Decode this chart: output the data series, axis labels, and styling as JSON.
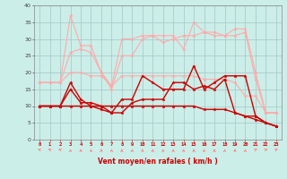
{
  "x": [
    0,
    1,
    2,
    3,
    4,
    5,
    6,
    7,
    8,
    9,
    10,
    11,
    12,
    13,
    14,
    15,
    16,
    17,
    18,
    19,
    20,
    21,
    22,
    23
  ],
  "series": [
    {
      "color": "#ffaaaa",
      "lw": 0.8,
      "values": [
        17,
        17,
        17,
        37,
        28,
        28,
        20,
        16,
        30,
        30,
        31,
        31,
        31,
        31,
        27,
        35,
        32,
        31,
        31,
        33,
        33,
        20,
        8,
        8
      ]
    },
    {
      "color": "#ffaaaa",
      "lw": 0.8,
      "values": [
        17,
        17,
        17,
        26,
        27,
        26,
        20,
        15,
        25,
        25,
        30,
        31,
        29,
        30,
        31,
        31,
        32,
        32,
        31,
        31,
        32,
        18,
        8,
        8
      ]
    },
    {
      "color": "#ffaaaa",
      "lw": 0.8,
      "values": [
        17,
        17,
        17,
        20,
        20,
        19,
        19,
        16,
        19,
        19,
        19,
        19,
        19,
        19,
        19,
        19,
        18,
        18,
        18,
        17,
        13,
        13,
        8,
        8
      ]
    },
    {
      "color": "#cc0000",
      "lw": 1.0,
      "values": [
        10,
        10,
        10,
        17,
        12,
        10,
        9,
        8,
        12,
        12,
        19,
        17,
        15,
        15,
        15,
        22,
        15,
        17,
        19,
        19,
        19,
        7,
        5,
        4
      ]
    },
    {
      "color": "#cc0000",
      "lw": 1.0,
      "values": [
        10,
        10,
        10,
        15,
        11,
        11,
        10,
        8,
        8,
        11,
        12,
        12,
        12,
        17,
        17,
        15,
        16,
        15,
        18,
        8,
        7,
        7,
        5,
        4
      ]
    },
    {
      "color": "#cc0000",
      "lw": 1.0,
      "values": [
        10,
        10,
        10,
        10,
        10,
        10,
        10,
        10,
        10,
        10,
        10,
        10,
        10,
        10,
        10,
        10,
        9,
        9,
        9,
        8,
        7,
        6,
        5,
        4
      ]
    }
  ],
  "arrow_angles": [
    315,
    315,
    315,
    0,
    0,
    0,
    0,
    0,
    0,
    0,
    0,
    0,
    0,
    0,
    0,
    0,
    0,
    0,
    0,
    0,
    0,
    45,
    45,
    45
  ],
  "xlim_min": -0.5,
  "xlim_max": 23.5,
  "ylim_min": 0,
  "ylim_max": 40,
  "yticks": [
    0,
    5,
    10,
    15,
    20,
    25,
    30,
    35,
    40
  ],
  "xtick_labels": [
    "0",
    "1",
    "2",
    "3",
    "4",
    "5",
    "6",
    "7",
    "8",
    "9",
    "10",
    "11",
    "12",
    "13",
    "14",
    "15",
    "16",
    "17",
    "18",
    "19",
    "20",
    "21",
    "22",
    "23"
  ],
  "xlabel": "Vent moyen/en rafales ( km/h )",
  "bg_color": "#cceee8",
  "grid_color": "#aacccc",
  "arrow_color": "#ff8888",
  "label_color": "#cc0000",
  "ytick_color": "#444444"
}
